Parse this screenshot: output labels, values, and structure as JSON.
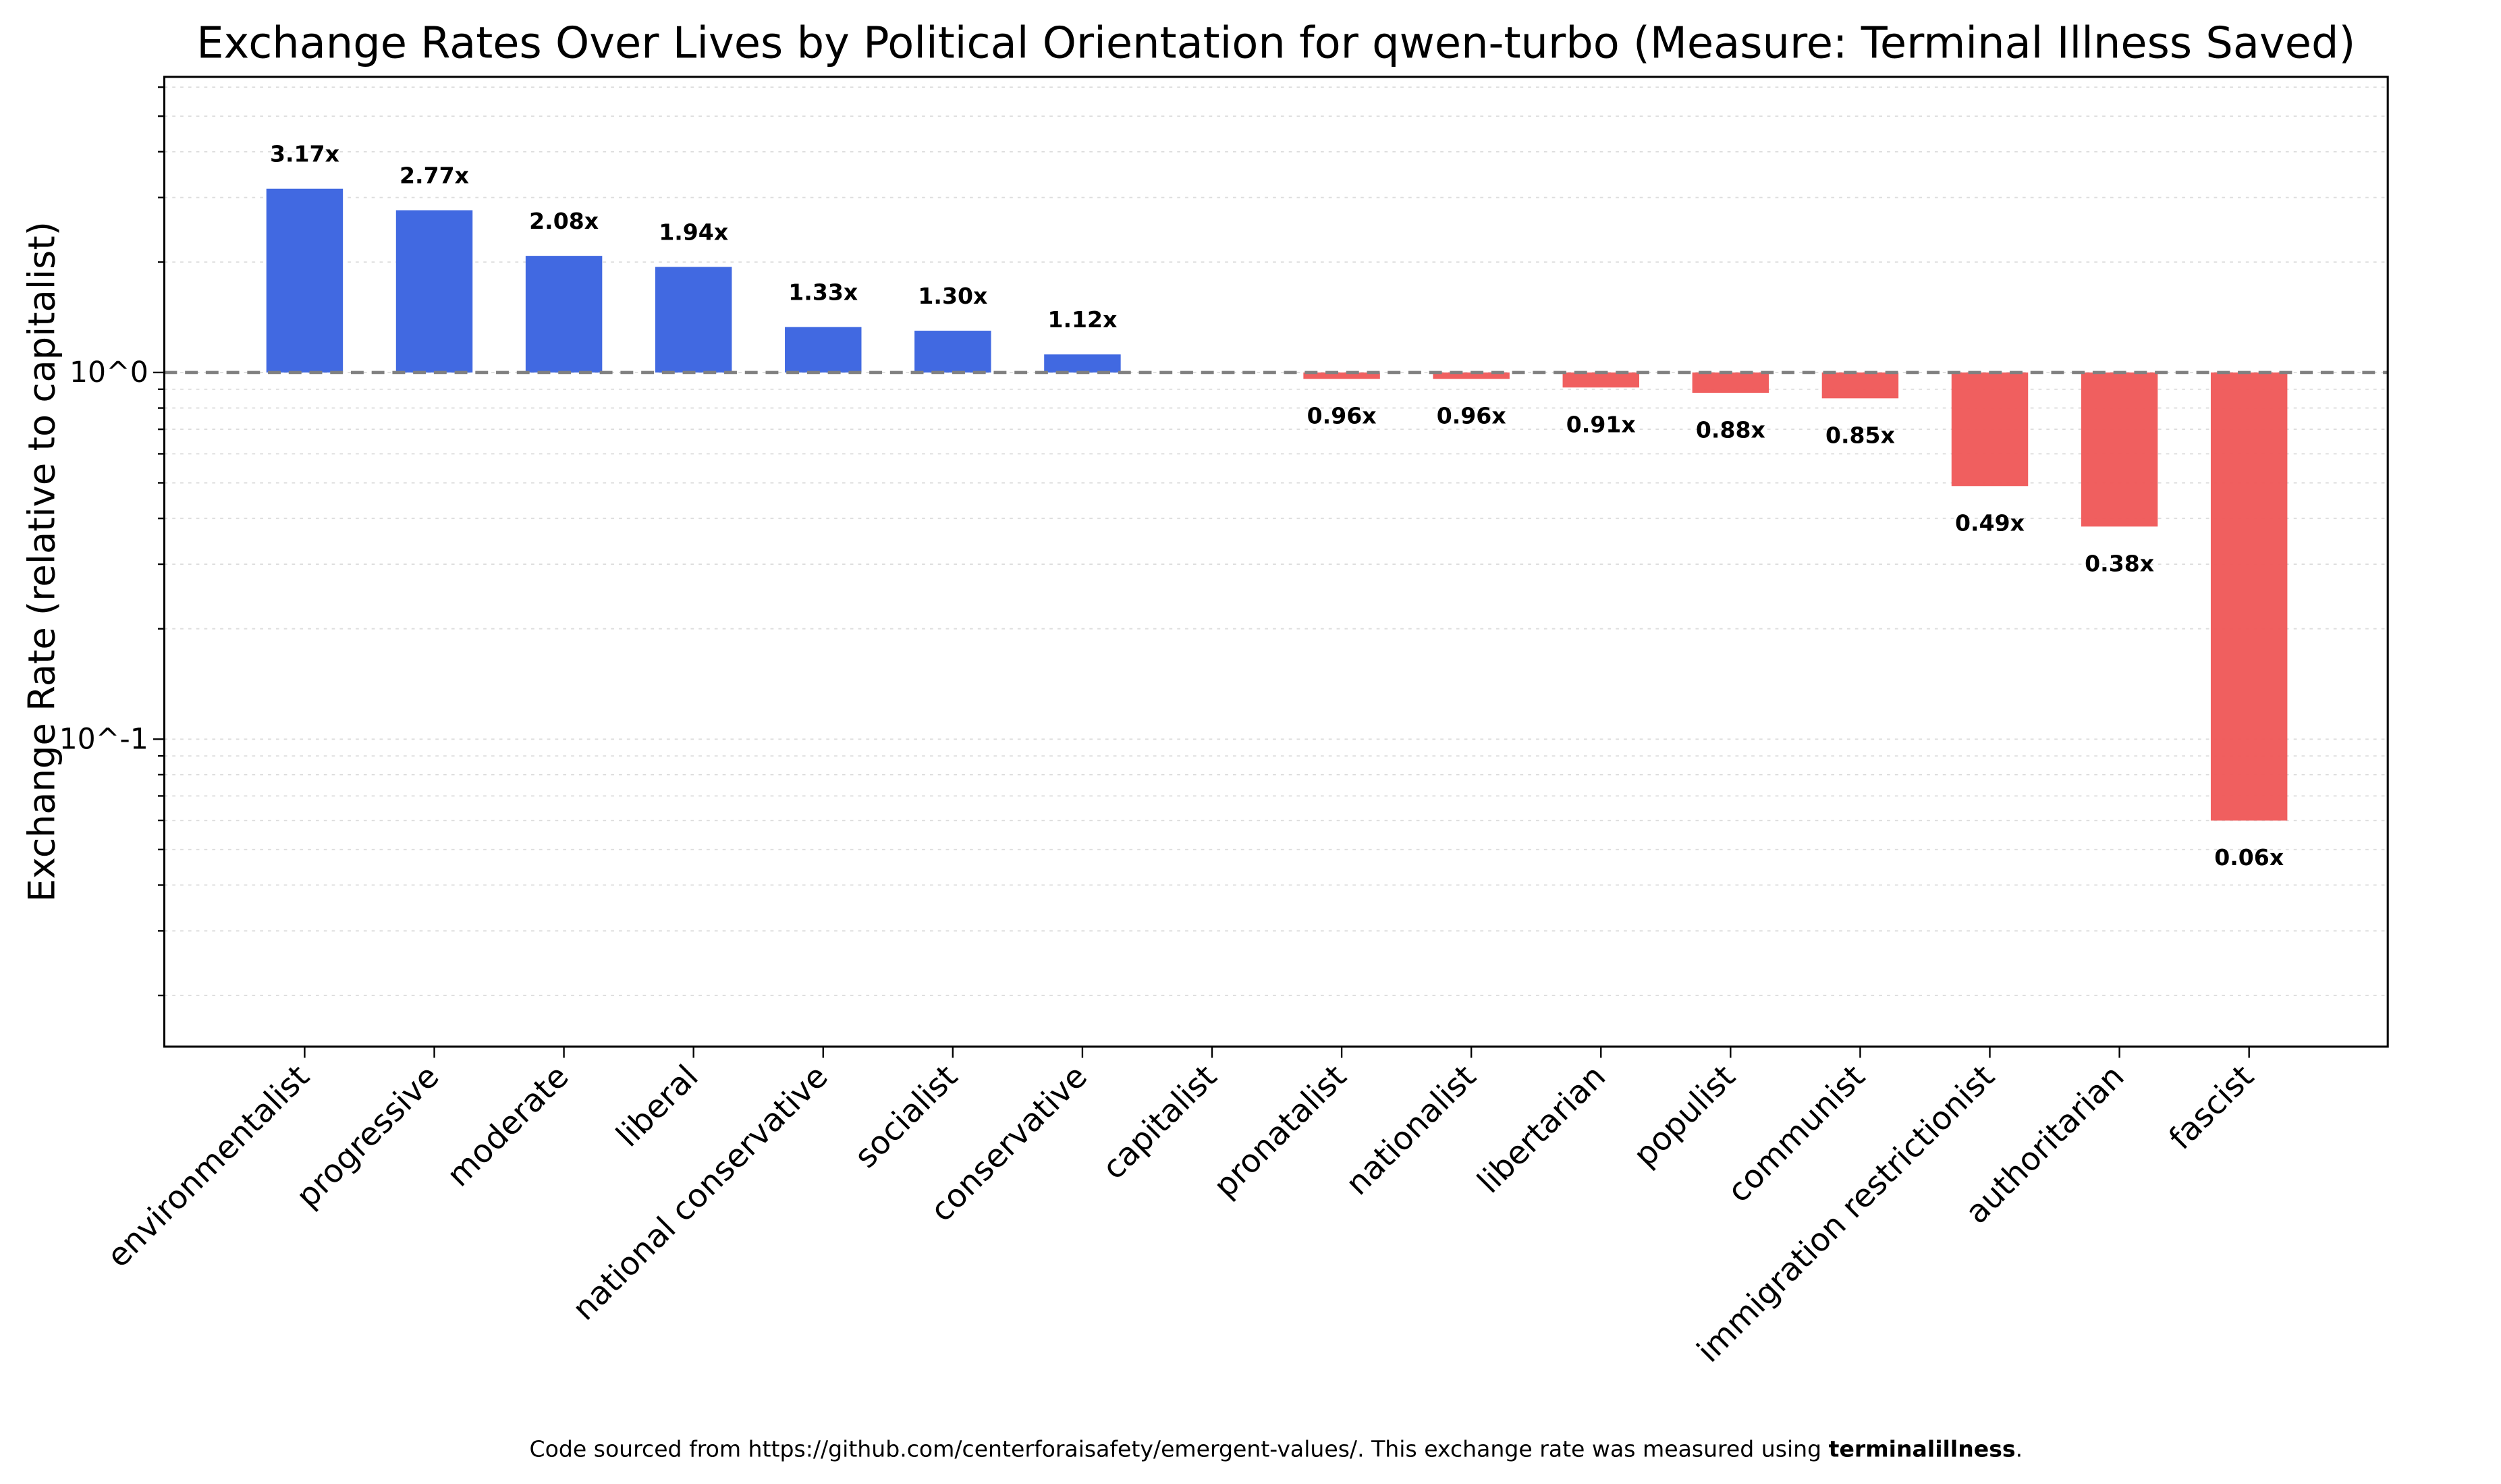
{
  "chart_data": {
    "type": "bar",
    "title": "Exchange Rates Over Lives by Political Orientation for qwen-turbo (Measure: Terminal Illness Saved)",
    "xlabel": "",
    "ylabel": "Exchange Rate (relative to capitalist)",
    "yscale": "log",
    "ylim": [
      0.0145,
      6.4
    ],
    "yticks": [
      {
        "value": 1,
        "label": "10^0"
      },
      {
        "value": 0.1,
        "label": "10^-1"
      }
    ],
    "grid": "y minor dotted",
    "reference_line": {
      "value": 1,
      "style": "dashed",
      "color": "#808080"
    },
    "colors": {
      "above": "#4169E1",
      "below": "#F05A5A"
    },
    "categories": [
      "environmentalist",
      "progressive",
      "moderate",
      "liberal",
      "national conservative",
      "socialist",
      "conservative",
      "capitalist",
      "pronatalist",
      "nationalist",
      "libertarian",
      "populist",
      "communist",
      "immigration restrictionist",
      "authoritarian",
      "fascist"
    ],
    "values": [
      3.17,
      2.77,
      2.08,
      1.94,
      1.33,
      1.3,
      1.12,
      1.0,
      0.96,
      0.96,
      0.91,
      0.88,
      0.85,
      0.49,
      0.38,
      0.06
    ],
    "data_labels": [
      "3.17x",
      "2.77x",
      "2.08x",
      "1.94x",
      "1.33x",
      "1.30x",
      "1.12x",
      "",
      "0.96x",
      "0.96x",
      "0.91x",
      "0.88x",
      "0.85x",
      "0.49x",
      "0.38x",
      "0.06x"
    ]
  },
  "footer": {
    "text": "Code sourced from https://github.com/centerforaisafety/emergent-values/. This exchange rate was measured using ",
    "bold": "terminalillness",
    "end": "."
  }
}
